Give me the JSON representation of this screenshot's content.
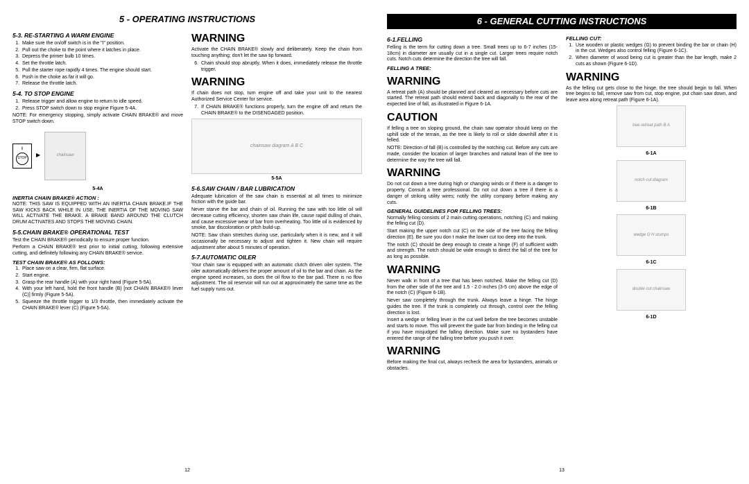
{
  "left_page": {
    "header": "5 - OPERATING INSTRUCTIONS",
    "page_num": "12",
    "col1": {
      "h_restart": "5-3. RE-STARTING A WARM ENGINE",
      "restart_steps": [
        "Make sure the on/off switch is in the \"I\" position.",
        "Pull out the choke to the point where it latches in place.",
        "Depress the primer bulb 10 times.",
        "Set the throttle latch.",
        "Pull the starter rope rapidly 4 times. The engine should start.",
        "Push in the choke as far it will go.",
        "Release the throttle latch."
      ],
      "h_stop": "5-4. TO STOP ENGINE",
      "stop_steps": [
        "Release trigger and allow engine to return to idle speed.",
        "Press STOP switch down to stop engine Figure 5-4A."
      ],
      "stop_note": "NOTE: For emergency stopping, simply activate CHAIN BRAKE® and move STOP switch down.",
      "fig_5_4a_label": "5-4A",
      "stop_label": "STOP",
      "h_inertia": "INERTIA CHAIN BRAKE® ACTION :",
      "inertia_note": "NOTE: THIS SAW IS EQUIPPED WITH AN INERTIA CHAIN BRAKE.IF THE SAW KICKS BACK WHILE IN USE, THE INERTIA OF THE MOVING SAW WILL ACTIVATE THE BRAKE. A BRAKE BAND AROUND THE CLUTCH DRUM ACTIVATES AND STOPS THE MOVING CHAIN.",
      "h_optest": "5-5.CHAIN BRAKE® OPERATIONAL TEST",
      "optest_p1": "Test the CHAIN BRAKE® periodically to ensure proper function.",
      "optest_p2": "Perform a CHAIN BRAKE® test prior to initial cutting, following extensive cutting, and definitely following any CHAIN BRAKE® service.",
      "h_testcb": "TEST CHAIN BRAKE® AS FOLLOWS:",
      "testcb_steps": [
        "Place saw on a clear, firm, flat surface.",
        "Start engine.",
        "Grasp the rear handle (A) with your right hand (Figure 5-5A).",
        "With your left hand, hold the front handle (B) [not CHAIN BRAKE® lever (C)] firmly (Figure 5-5A).",
        "Squeeze the throttle trigger to 1/3 throttle, then immediately activate the CHAIN BRAKE® lever (C) (Figure 5-5A)."
      ]
    },
    "col2": {
      "warn1": "WARNING",
      "warn1_p": "Activate the CHAIN BRAKE® slowly and deliberately. Keep the chain from touching anything; don't let the saw tip forward.",
      "warn1_step6": "Chain should stop abruptly. When it does, immediately release the throttle trigger.",
      "warn2": "WARNING",
      "warn2_p": "If chain does not stop, turn engine off and take your unit to the nearest Authorized Service Center for service.",
      "warn2_step7": "If CHAIN BRAKE® functions properly, turn the engine off and return the CHAIN BRAKE® to the DISENGAGED position.",
      "fig_5_5a_placeholder": "chainsaw diagram A B C",
      "fig_5_5a_label": "5-5A",
      "h_lub": "5-6.SAW CHAIN / BAR LUBRICATION",
      "lub_p1": "Adequate lubrication of the saw chain is essential at all times to minimize friction with the guide bar.",
      "lub_p2": "Never starve the bar and chain of oil. Running the saw with too little oil will decrease cutting efficiency, shorten saw chain life, cause rapid dulling of chain, and cause excessive wear of bar from overheating. Too little oil is evidenced by smoke, bar discoloration or pitch build-up.",
      "lub_note": "NOTE: Saw chain stretches during use, particularly when it is new, and it will occasionally be necessary to adjust and tighten it. New chain will require adjustment after about 5 minutes of operation.",
      "h_auto": "5-7.AUTOMATIC OILER",
      "auto_p": "Your chain saw is equipped with an automatic clutch driven oiler system. The oiler automatically delivers the proper amount of oil to the bar and chain. As the engine speed increases, so does the oil flow to the bar pad. There is no flow adjustment. The oil reservoir will run out at approximately the same time as the fuel supply runs out."
    }
  },
  "right_page": {
    "header": "6 - GENERAL CUTTING INSTRUCTIONS",
    "page_num": "13",
    "col1": {
      "h_felling": "6-1.FELLING",
      "felling_p": "Felling is the term for cutting down a tree. Small trees up to 6-7 inches (15-18cm) in diameter are usually cut in a single cut. Larger trees require notch cuts. Notch cuts determine the direction the tree will fall.",
      "h_fellingtree": "FELLING A TREE:",
      "warn1": "WARNING",
      "warn1_p": "A retreat path (A) should be planned and cleared as necessary before cuts are started. The retreat path should extend back and diagonally to the rear of the expected line of fall, as illustrated in Figure 6-1A.",
      "caution": "CAUTION",
      "caution_p": "If felling a tree on sloping ground, the chain saw operator should keep on the uphill side of the terrain, as the tree is likely to roll or slide downhill after it is felled.",
      "caution_note": "NOTE: Direction of fall (B) is controlled by the notching cut. Before any cuts are made, consider the location of larger branches and natural lean of the tree to determine the way the tree will fall.",
      "warn2": "WARNING",
      "warn2_p": "Do not cut down a tree during high or changing winds or if there is a danger to property. Consult a tree professional. Do not cut down a tree if there is a danger of striking utility wires; notify the utility company before making any cuts.",
      "h_guidelines": "GENERAL GUIDELINES FOR FELLING TREES:",
      "guide_p1": "Normally felling consists of 2 main cutting operations, notching (C) and making the felling cut (D).",
      "guide_p2": "Start making the upper notch cut (C) on the side of the tree facing the felling direction (E). Be sure you don t make the lower cut too deep into the trunk.",
      "guide_p3": "The notch (C) should be deep enough to create a hinge (F) of sufficient width and strength. The notch should be wide enough to direct the fall of the tree for as long as possible.",
      "warn3": "WARNING",
      "warn3_p": "Never walk in front of a tree that has been notched. Make the felling cut (D) from the other side of the tree and 1.5 - 2.0 inches (3-5 cm) above the edge of the notch (C) (Figure 6-1B).",
      "warn3_p2": "Never saw completely through the trunk. Always leave a hinge. The hinge guides the tree. If the trunk is completely cut through, control over the felling direction is lost.",
      "warn3_p3": "Insert a wedge or felling lever in the cut well before the tree becomes unstable and starts to move. This will prevent the guide bar from binding in the felling cut if you have misjudged the falling direction. Make sure no bystanders have entered the range of the falling tree before you push it over.",
      "warn4": "WARNING",
      "warn4_p": "Before making the final cut, always recheck the area for bystanders, animals or obstacles."
    },
    "col2": {
      "h_fellingcut": "FELLING CUT:",
      "fellingcut_steps": [
        "Use wooden or plastic wedges (G) to prevent binding the bar or chain (H) in the cut. Wedges also control felling (Figure 6-1C).",
        "When diameter of wood being cut is greater than the bar length, make 2 cuts as shown (Figure 6-1D)."
      ],
      "warn": "WARNING",
      "warn_p": "As the felling cut gets close to the hinge, the tree should begin to fall. When tree begins to fall, remove saw from cut, stop engine, put chain saw down, and leave area along retreat path (Figure 6-1A).",
      "fig_6_1a_label": "6-1A",
      "fig_6_1b_label": "6-1B",
      "fig_6_1c_label": "6-1C",
      "fig_6_1d_label": "6-1D",
      "fig_6_1a_placeholder": "tree retreat path B A",
      "fig_6_1b_placeholder": "notch cut diagram",
      "fig_6_1c_placeholder": "wedge G H stumps",
      "fig_6_1d_placeholder": "double cut chainsaw"
    }
  }
}
